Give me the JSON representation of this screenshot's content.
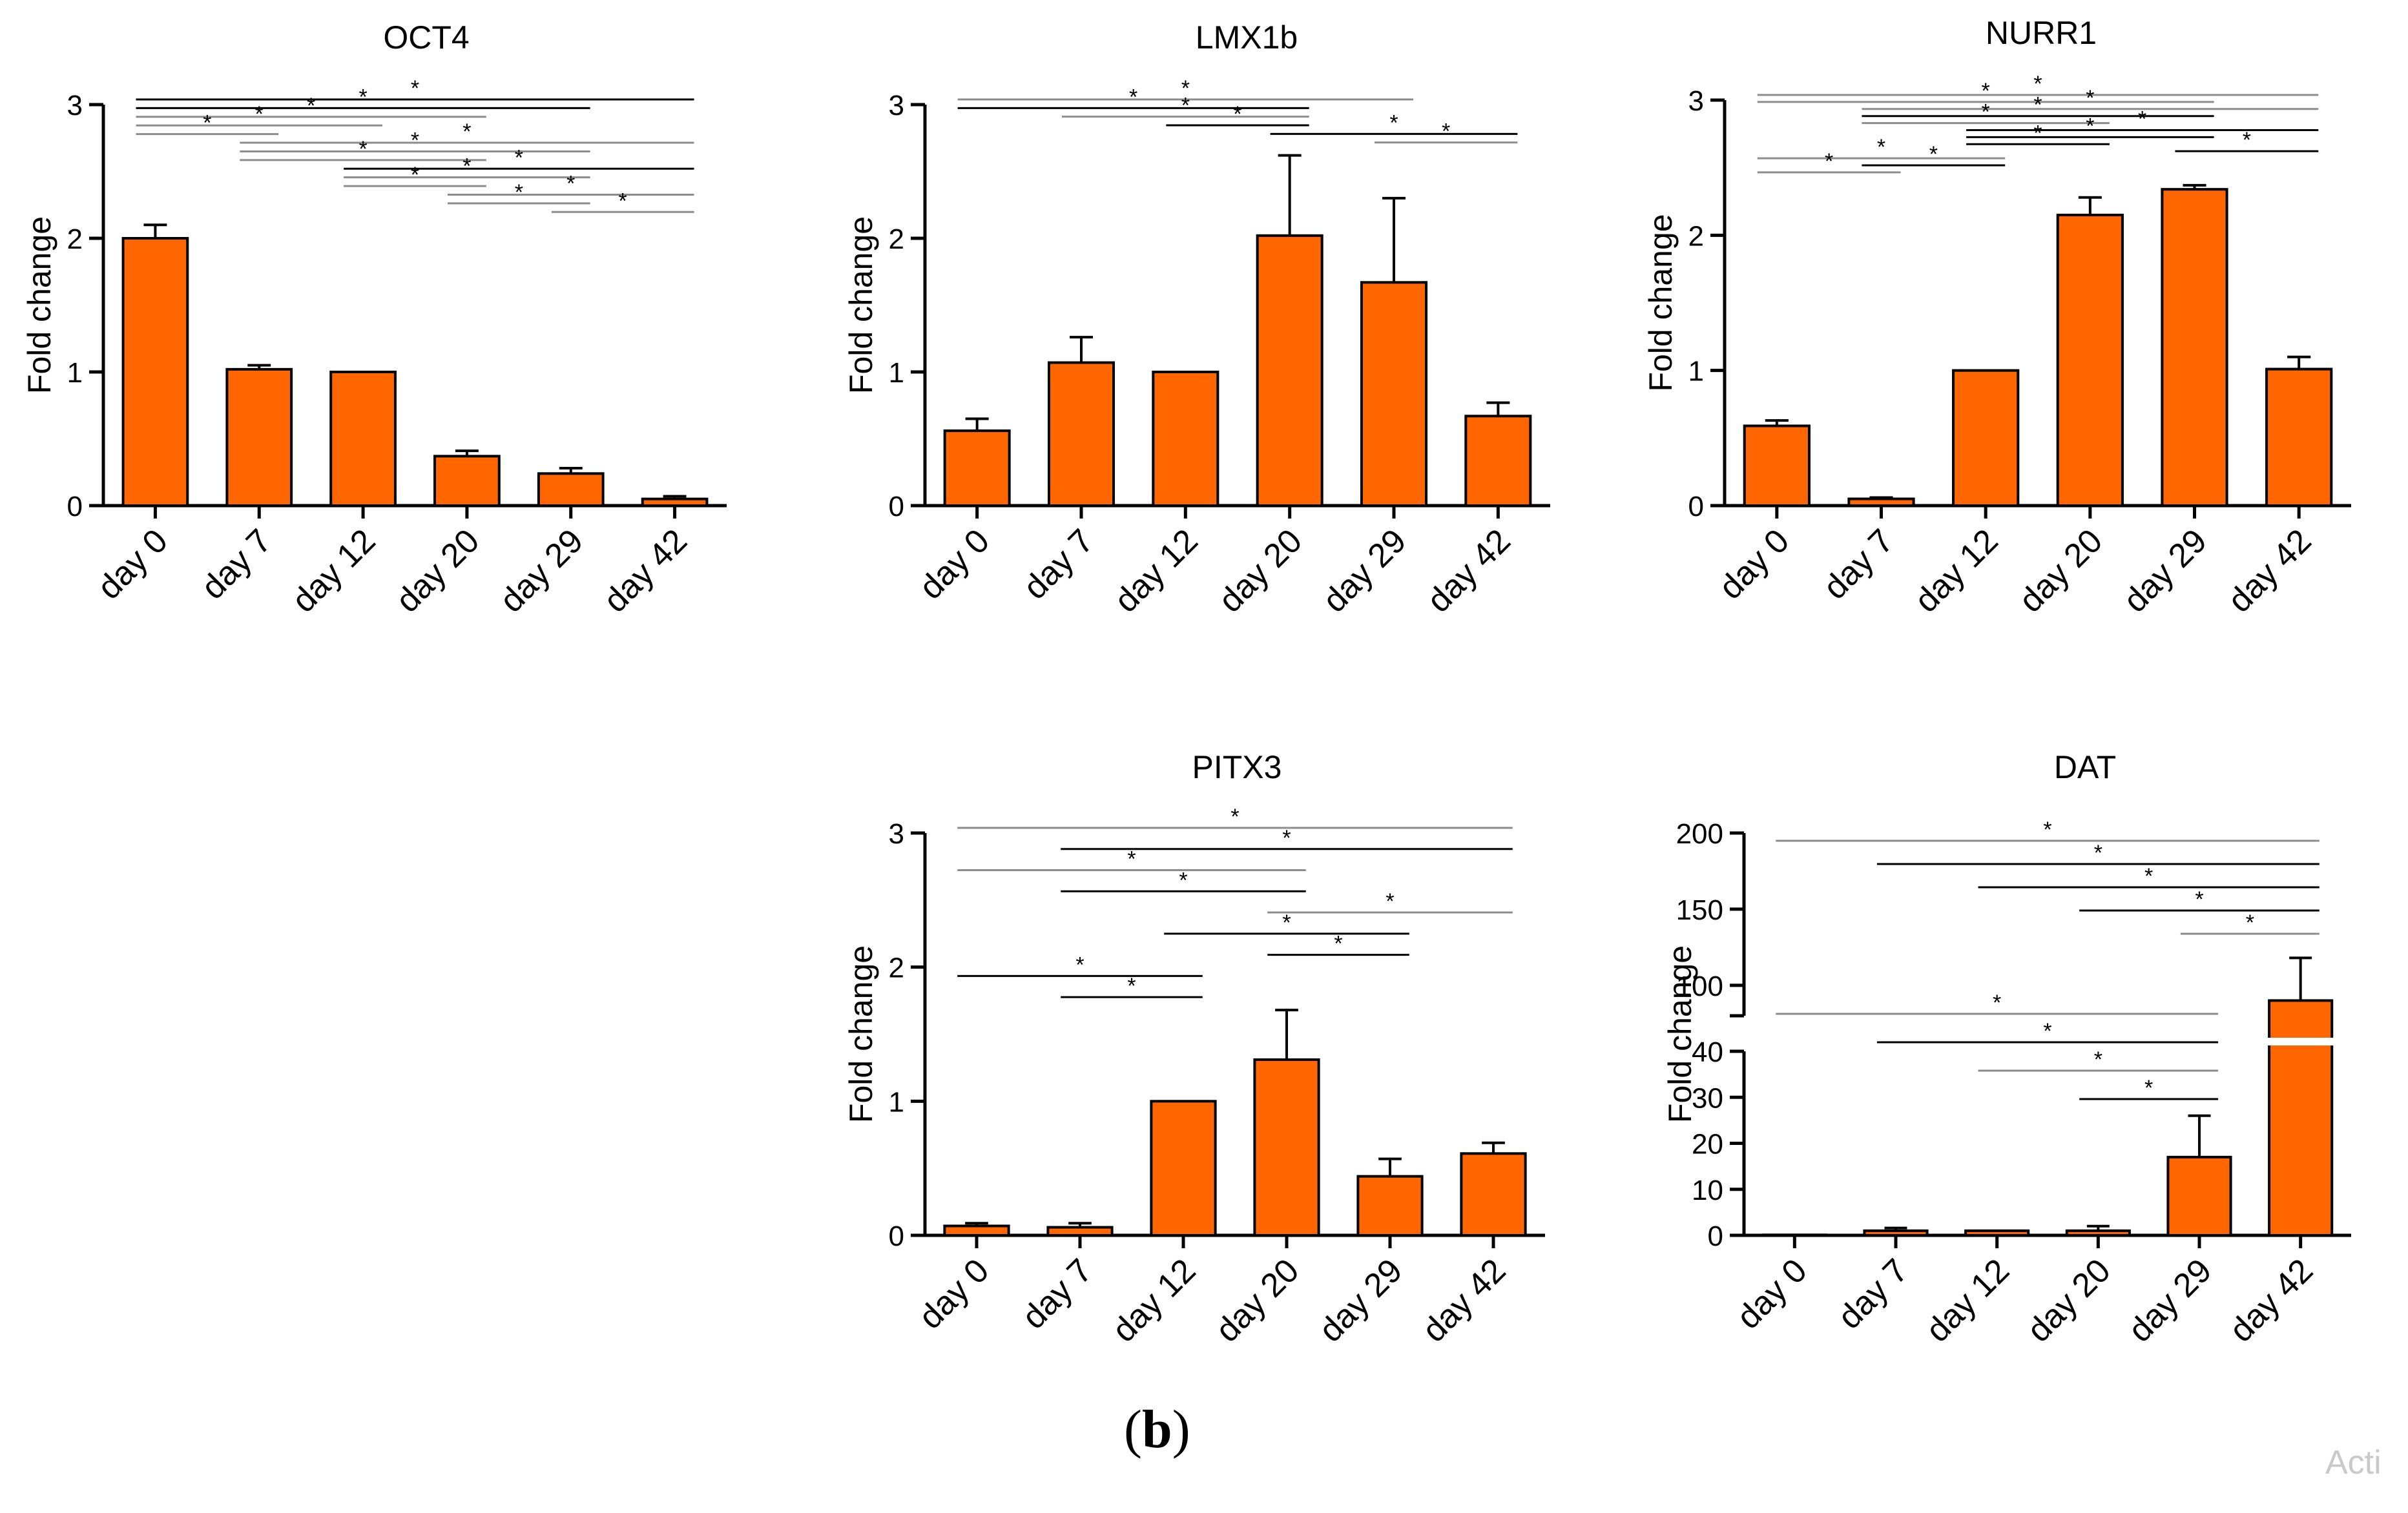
{
  "figure": {
    "panel_label": "b",
    "watermark": "Acti",
    "bar_color": "#FF6600",
    "bar_edge_color": "#000000",
    "sig_colors": {
      "dark": "#000000",
      "light": "#8c8c8c"
    }
  },
  "chart_data": [
    {
      "type": "bar",
      "title": "OCT4",
      "ylabel": "Fold change",
      "xlabel": "",
      "categories": [
        "day 0",
        "day 7",
        "day 12",
        "day 20",
        "day 29",
        "day 42"
      ],
      "values": [
        2.0,
        1.02,
        1.0,
        0.37,
        0.24,
        0.05
      ],
      "errors": [
        0.1,
        0.03,
        0.0,
        0.04,
        0.04,
        0.02
      ],
      "ylim": [
        0,
        3
      ],
      "yticks": [
        0,
        1,
        2,
        3
      ],
      "significance": [
        {
          "from": 0,
          "to": 5,
          "label": "*",
          "tone": "dark"
        },
        {
          "from": 0,
          "to": 4,
          "label": "*",
          "tone": "dark"
        },
        {
          "from": 0,
          "to": 3,
          "label": "*",
          "tone": "light"
        },
        {
          "from": 0,
          "to": 2,
          "label": "*",
          "tone": "light"
        },
        {
          "from": 0,
          "to": 1,
          "label": "*",
          "tone": "light"
        },
        {
          "from": 1,
          "to": 5,
          "label": "*",
          "tone": "light"
        },
        {
          "from": 1,
          "to": 4,
          "label": "*",
          "tone": "light"
        },
        {
          "from": 1,
          "to": 3,
          "label": "*",
          "tone": "light"
        },
        {
          "from": 2,
          "to": 5,
          "label": "*",
          "tone": "dark"
        },
        {
          "from": 2,
          "to": 4,
          "label": "*",
          "tone": "light"
        },
        {
          "from": 2,
          "to": 3,
          "label": "*",
          "tone": "light"
        },
        {
          "from": 3,
          "to": 5,
          "label": "*",
          "tone": "light"
        },
        {
          "from": 3,
          "to": 4,
          "label": "*",
          "tone": "light"
        },
        {
          "from": 4,
          "to": 5,
          "label": "*",
          "tone": "light"
        }
      ]
    },
    {
      "type": "bar",
      "title": "LMX1b",
      "ylabel": "Fold change",
      "xlabel": "",
      "categories": [
        "day 0",
        "day 7",
        "day 12",
        "day 20",
        "day 29",
        "day 42"
      ],
      "values": [
        0.56,
        1.07,
        1.0,
        2.02,
        1.67,
        0.67
      ],
      "errors": [
        0.09,
        0.19,
        0.0,
        0.6,
        0.63,
        0.1
      ],
      "ylim": [
        0,
        3
      ],
      "yticks": [
        0,
        1,
        2,
        3
      ],
      "significance": [
        {
          "from": 0,
          "to": 4,
          "label": "*",
          "tone": "light"
        },
        {
          "from": 0,
          "to": 3,
          "label": "*",
          "tone": "dark"
        },
        {
          "from": 1,
          "to": 3,
          "label": "*",
          "tone": "light"
        },
        {
          "from": 2,
          "to": 3,
          "label": "*",
          "tone": "dark"
        },
        {
          "from": 3,
          "to": 5,
          "label": "*",
          "tone": "dark"
        },
        {
          "from": 4,
          "to": 5,
          "label": "*",
          "tone": "light"
        }
      ]
    },
    {
      "type": "bar",
      "title": "NURR1",
      "ylabel": "Fold change",
      "xlabel": "",
      "categories": [
        "day 0",
        "day 7",
        "day 12",
        "day 20",
        "day 29",
        "day 42"
      ],
      "values": [
        0.59,
        0.05,
        1.0,
        2.15,
        2.34,
        1.01
      ],
      "errors": [
        0.04,
        0.01,
        0.0,
        0.13,
        0.03,
        0.09
      ],
      "ylim": [
        0,
        3
      ],
      "yticks": [
        0,
        1,
        2,
        3
      ],
      "significance": [
        {
          "from": 0,
          "to": 5,
          "label": "*",
          "tone": "light"
        },
        {
          "from": 0,
          "to": 4,
          "label": "*",
          "tone": "light"
        },
        {
          "from": 1,
          "to": 5,
          "label": "*",
          "tone": "light"
        },
        {
          "from": 1,
          "to": 4,
          "label": "*",
          "tone": "dark"
        },
        {
          "from": 1,
          "to": 3,
          "label": "*",
          "tone": "light"
        },
        {
          "from": 2,
          "to": 5,
          "label": "*",
          "tone": "dark"
        },
        {
          "from": 2,
          "to": 4,
          "label": "*",
          "tone": "dark"
        },
        {
          "from": 2,
          "to": 3,
          "label": "*",
          "tone": "dark"
        },
        {
          "from": 4,
          "to": 5,
          "label": "*",
          "tone": "dark"
        },
        {
          "from": 0,
          "to": 2,
          "label": "*",
          "tone": "light"
        },
        {
          "from": 1,
          "to": 2,
          "label": "*",
          "tone": "dark"
        },
        {
          "from": 0,
          "to": 1,
          "label": "*",
          "tone": "light"
        }
      ]
    },
    {
      "type": "bar",
      "title": "PITX3",
      "ylabel": "Fold change",
      "xlabel": "",
      "categories": [
        "day 0",
        "day 7",
        "day 12",
        "day 20",
        "day 29",
        "day 42"
      ],
      "values": [
        0.07,
        0.06,
        1.0,
        1.31,
        0.44,
        0.61
      ],
      "errors": [
        0.02,
        0.03,
        0.0,
        0.37,
        0.13,
        0.08
      ],
      "ylim": [
        0,
        3
      ],
      "yticks": [
        0,
        1,
        2,
        3
      ],
      "significance": [
        {
          "from": 0,
          "to": 5,
          "label": "*",
          "tone": "light"
        },
        {
          "from": 1,
          "to": 5,
          "label": "*",
          "tone": "dark"
        },
        {
          "from": 0,
          "to": 3,
          "label": "*",
          "tone": "light"
        },
        {
          "from": 1,
          "to": 3,
          "label": "*",
          "tone": "dark"
        },
        {
          "from": 3,
          "to": 5,
          "label": "*",
          "tone": "light"
        },
        {
          "from": 2,
          "to": 4,
          "label": "*",
          "tone": "dark"
        },
        {
          "from": 3,
          "to": 4,
          "label": "*",
          "tone": "dark"
        },
        {
          "from": 0,
          "to": 2,
          "label": "*",
          "tone": "dark"
        },
        {
          "from": 1,
          "to": 2,
          "label": "*",
          "tone": "dark"
        }
      ]
    },
    {
      "type": "bar",
      "title": "DAT",
      "ylabel": "Fold change",
      "xlabel": "",
      "categories": [
        "day 0",
        "day 7",
        "day 12",
        "day 20",
        "day 29",
        "day 42"
      ],
      "values": [
        0.1,
        1.0,
        1.0,
        1.0,
        17.0,
        90.0
      ],
      "errors": [
        0.0,
        0.6,
        0.0,
        1.0,
        9.0,
        28.0
      ],
      "ylim": [
        0,
        200
      ],
      "broken_axis": {
        "lower": [
          0,
          40
        ],
        "upper": [
          80,
          200
        ]
      },
      "yticks": [
        0,
        10,
        20,
        30,
        40,
        100,
        150,
        200
      ],
      "significance": [
        {
          "from": 0,
          "to": 5,
          "label": "*",
          "tone": "light"
        },
        {
          "from": 1,
          "to": 5,
          "label": "*",
          "tone": "dark"
        },
        {
          "from": 2,
          "to": 5,
          "label": "*",
          "tone": "dark"
        },
        {
          "from": 3,
          "to": 5,
          "label": "*",
          "tone": "dark"
        },
        {
          "from": 4,
          "to": 5,
          "label": "*",
          "tone": "light"
        },
        {
          "from": 0,
          "to": 4,
          "label": "*",
          "tone": "light"
        },
        {
          "from": 1,
          "to": 4,
          "label": "*",
          "tone": "dark"
        },
        {
          "from": 2,
          "to": 4,
          "label": "*",
          "tone": "light"
        },
        {
          "from": 3,
          "to": 4,
          "label": "*",
          "tone": "dark"
        }
      ]
    }
  ]
}
